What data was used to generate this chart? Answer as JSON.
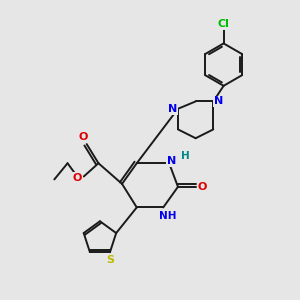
{
  "background_color": "#e6e6e6",
  "bond_color": "#1a1a1a",
  "atom_colors": {
    "N": "#0000ee",
    "O": "#dd0000",
    "S": "#bbbb00",
    "Cl": "#00bb00",
    "C": "#1a1a1a",
    "H": "#008888"
  },
  "figsize": [
    3.0,
    3.0
  ],
  "dpi": 100
}
